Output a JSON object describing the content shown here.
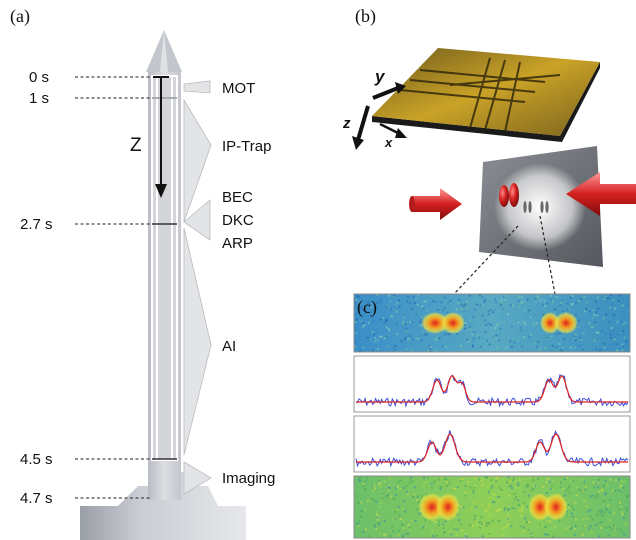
{
  "panel_a": {
    "label": "(a)",
    "times": [
      "0 s",
      "1 s",
      "2.7 s",
      "4.5 s",
      "4.7 s"
    ],
    "axis_label": "Z",
    "phases": [
      "MOT",
      "IP-Trap",
      "BEC",
      "DKC",
      "ARP",
      "AI",
      "Imaging"
    ]
  },
  "panel_b": {
    "label": "(b)",
    "axes": {
      "y": "y",
      "z": "z",
      "x": "x"
    }
  },
  "panel_c": {
    "label": "(c)"
  },
  "colors": {
    "rocket_gray": "#c8cbd0",
    "chip_gold": "#c9a227",
    "beam_red": "#d42020",
    "trace_blue": "#3b4fd8",
    "fit_red": "#e02020"
  }
}
